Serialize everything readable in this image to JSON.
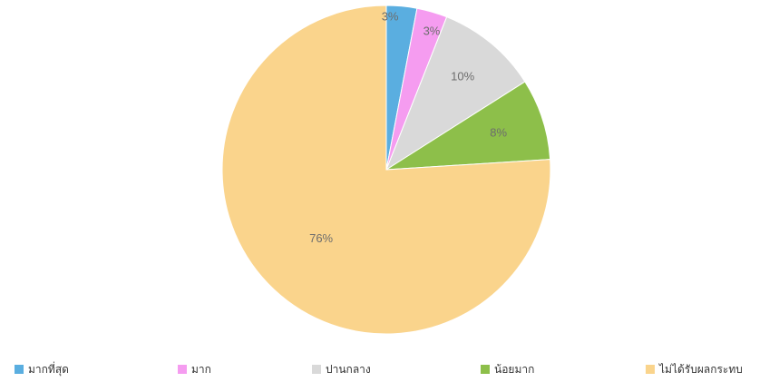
{
  "chart_data": {
    "type": "pie",
    "title": "",
    "categories": [
      "มากที่สุด",
      "มาก",
      "ปานกลาง",
      "น้อยมาก",
      "ไม่ได้รับผลกระทบ"
    ],
    "values": [
      3,
      3,
      10,
      8,
      76
    ],
    "value_labels": [
      "3%",
      "3%",
      "10%",
      "8%",
      "76%"
    ],
    "colors": [
      "#5aaee0",
      "#f59cf0",
      "#d9d9d9",
      "#8dbf4a",
      "#fad48c"
    ],
    "start_angle_deg": 0,
    "direction": "clockwise",
    "legend_position": "bottom"
  }
}
